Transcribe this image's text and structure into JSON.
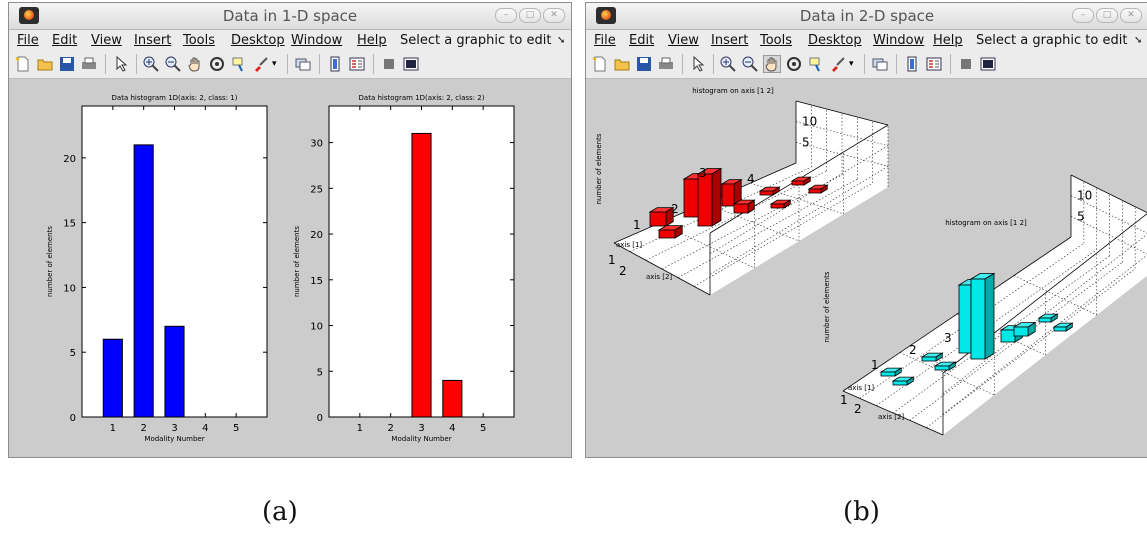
{
  "windows": [
    {
      "title": "Data in 1-D space",
      "menu": [
        "File",
        "Edit",
        "View",
        "Insert",
        "Tools",
        "Desktop",
        "Window",
        "Help",
        "Select a graphic to edit"
      ]
    },
    {
      "title": "Data in 2-D space",
      "menu": [
        "File",
        "Edit",
        "View",
        "Insert",
        "Tools",
        "Desktop",
        "Window",
        "Help",
        "Select a graphic to edit"
      ]
    }
  ],
  "captions": [
    "(a)",
    "(b)"
  ],
  "chart_data": [
    {
      "type": "bar",
      "title": "Data histogram 1D(axis: 2, class: 1)",
      "xlabel": "Modality Number",
      "ylabel": "number of elements",
      "categories": [
        "1",
        "2",
        "3",
        "4",
        "5"
      ],
      "values": [
        6,
        21,
        7,
        0,
        0
      ],
      "color": "#0000ff",
      "ylim": [
        0,
        24
      ],
      "yticks": [
        0,
        5,
        10,
        15,
        20
      ]
    },
    {
      "type": "bar",
      "title": "Data histogram 1D(axis: 2, class: 2)",
      "xlabel": "Modality Number",
      "ylabel": "number of elements",
      "categories": [
        "1",
        "2",
        "3",
        "4",
        "5"
      ],
      "values": [
        0,
        0,
        31,
        4,
        0
      ],
      "color": "#ff0000",
      "ylim": [
        0,
        34
      ],
      "yticks": [
        0,
        5,
        10,
        15,
        20,
        25,
        30
      ]
    },
    {
      "type": "bar",
      "title": "histogram on axis [1 2]",
      "xlabel": "axis [1]",
      "ylabel": "axis [2]",
      "zlabel": "number of elements",
      "color": "#ff0000",
      "xticks": [
        "1",
        "2",
        "3",
        "4"
      ],
      "yticks": [
        "1",
        "2"
      ],
      "zticks": [
        "5",
        "10"
      ]
    },
    {
      "type": "bar",
      "title": "histogram on axis [1 2]",
      "xlabel": "axis [1]",
      "ylabel": "axis [2]",
      "zlabel": "number of elements",
      "color": "#00ffff",
      "xticks": [
        "1",
        "2",
        "3"
      ],
      "yticks": [
        "1",
        "2"
      ],
      "zticks": [
        "5",
        "10"
      ]
    }
  ]
}
